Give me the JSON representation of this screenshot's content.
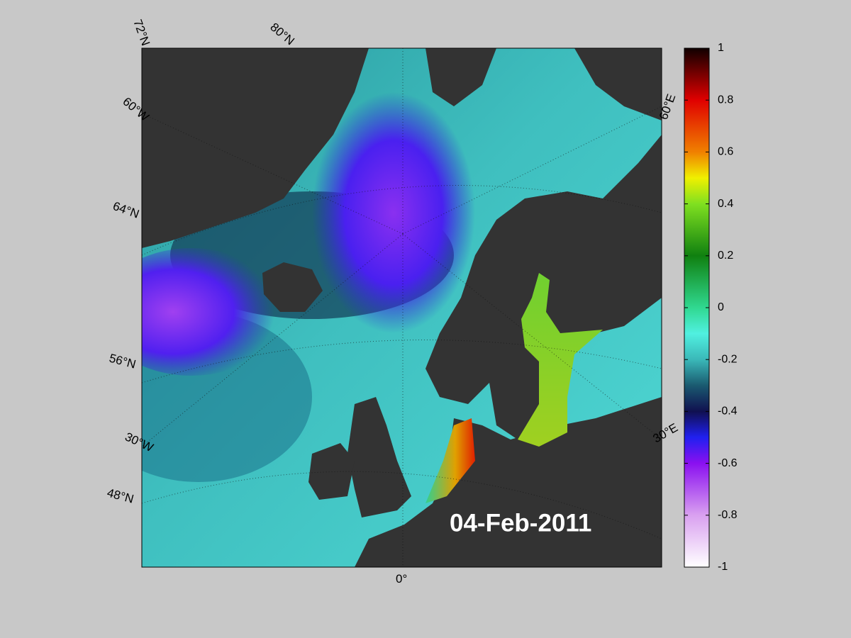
{
  "map": {
    "date": "04-Feb-2011",
    "graticule_labels": {
      "lat_72": "72°N",
      "lat_80": "80°N",
      "lat_64": "64°N",
      "lat_56": "56°N",
      "lat_48": "48°N",
      "lon_60w": "60°W",
      "lon_30w": "30°W",
      "lon_0": "0°",
      "lon_30e": "30°E",
      "lon_60e": "60°E"
    },
    "colorbar": {
      "clim": [
        -1,
        1
      ],
      "ticks": [
        1,
        0.8,
        0.6,
        0.4,
        0.2,
        0,
        -0.2,
        -0.4,
        -0.6,
        -0.8,
        -1
      ]
    }
  }
}
